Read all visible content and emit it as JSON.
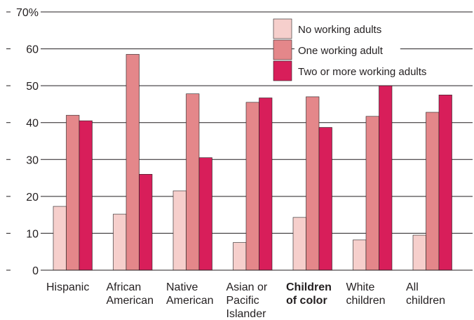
{
  "chart_data": {
    "type": "bar",
    "title": "",
    "xlabel": "",
    "ylabel": "",
    "ylim": [
      0,
      70
    ],
    "yticks": [
      {
        "value": 70,
        "label": "70%"
      },
      {
        "value": 60,
        "label": "60"
      },
      {
        "value": 50,
        "label": "50"
      },
      {
        "value": 40,
        "label": "40"
      },
      {
        "value": 30,
        "label": "30"
      },
      {
        "value": 20,
        "label": "20"
      },
      {
        "value": 10,
        "label": "10"
      },
      {
        "value": 0,
        "label": "0"
      }
    ],
    "grid": true,
    "legend_position": "top-right",
    "categories": [
      {
        "lines": [
          "Hispanic"
        ],
        "bold": false
      },
      {
        "lines": [
          "African",
          "American"
        ],
        "bold": false
      },
      {
        "lines": [
          "Native",
          "American"
        ],
        "bold": false
      },
      {
        "lines": [
          "Asian or",
          "Pacific",
          "Islander"
        ],
        "bold": false
      },
      {
        "lines": [
          "Children",
          "of color"
        ],
        "bold": true
      },
      {
        "lines": [
          "White",
          "children"
        ],
        "bold": false
      },
      {
        "lines": [
          "All",
          "children"
        ],
        "bold": false
      }
    ],
    "series": [
      {
        "name": "No working adults",
        "color": "#f6cfcc",
        "values": [
          17.3,
          15.2,
          21.5,
          7.5,
          14.3,
          8.2,
          9.5
        ]
      },
      {
        "name": "One working adult",
        "color": "#e4878a",
        "values": [
          42,
          58.5,
          47.8,
          45.5,
          47,
          41.7,
          42.8
        ]
      },
      {
        "name": "Two or more working adults",
        "color": "#d81e5a",
        "values": [
          40.5,
          26,
          30.5,
          46.7,
          38.7,
          50,
          47.5
        ]
      }
    ]
  }
}
